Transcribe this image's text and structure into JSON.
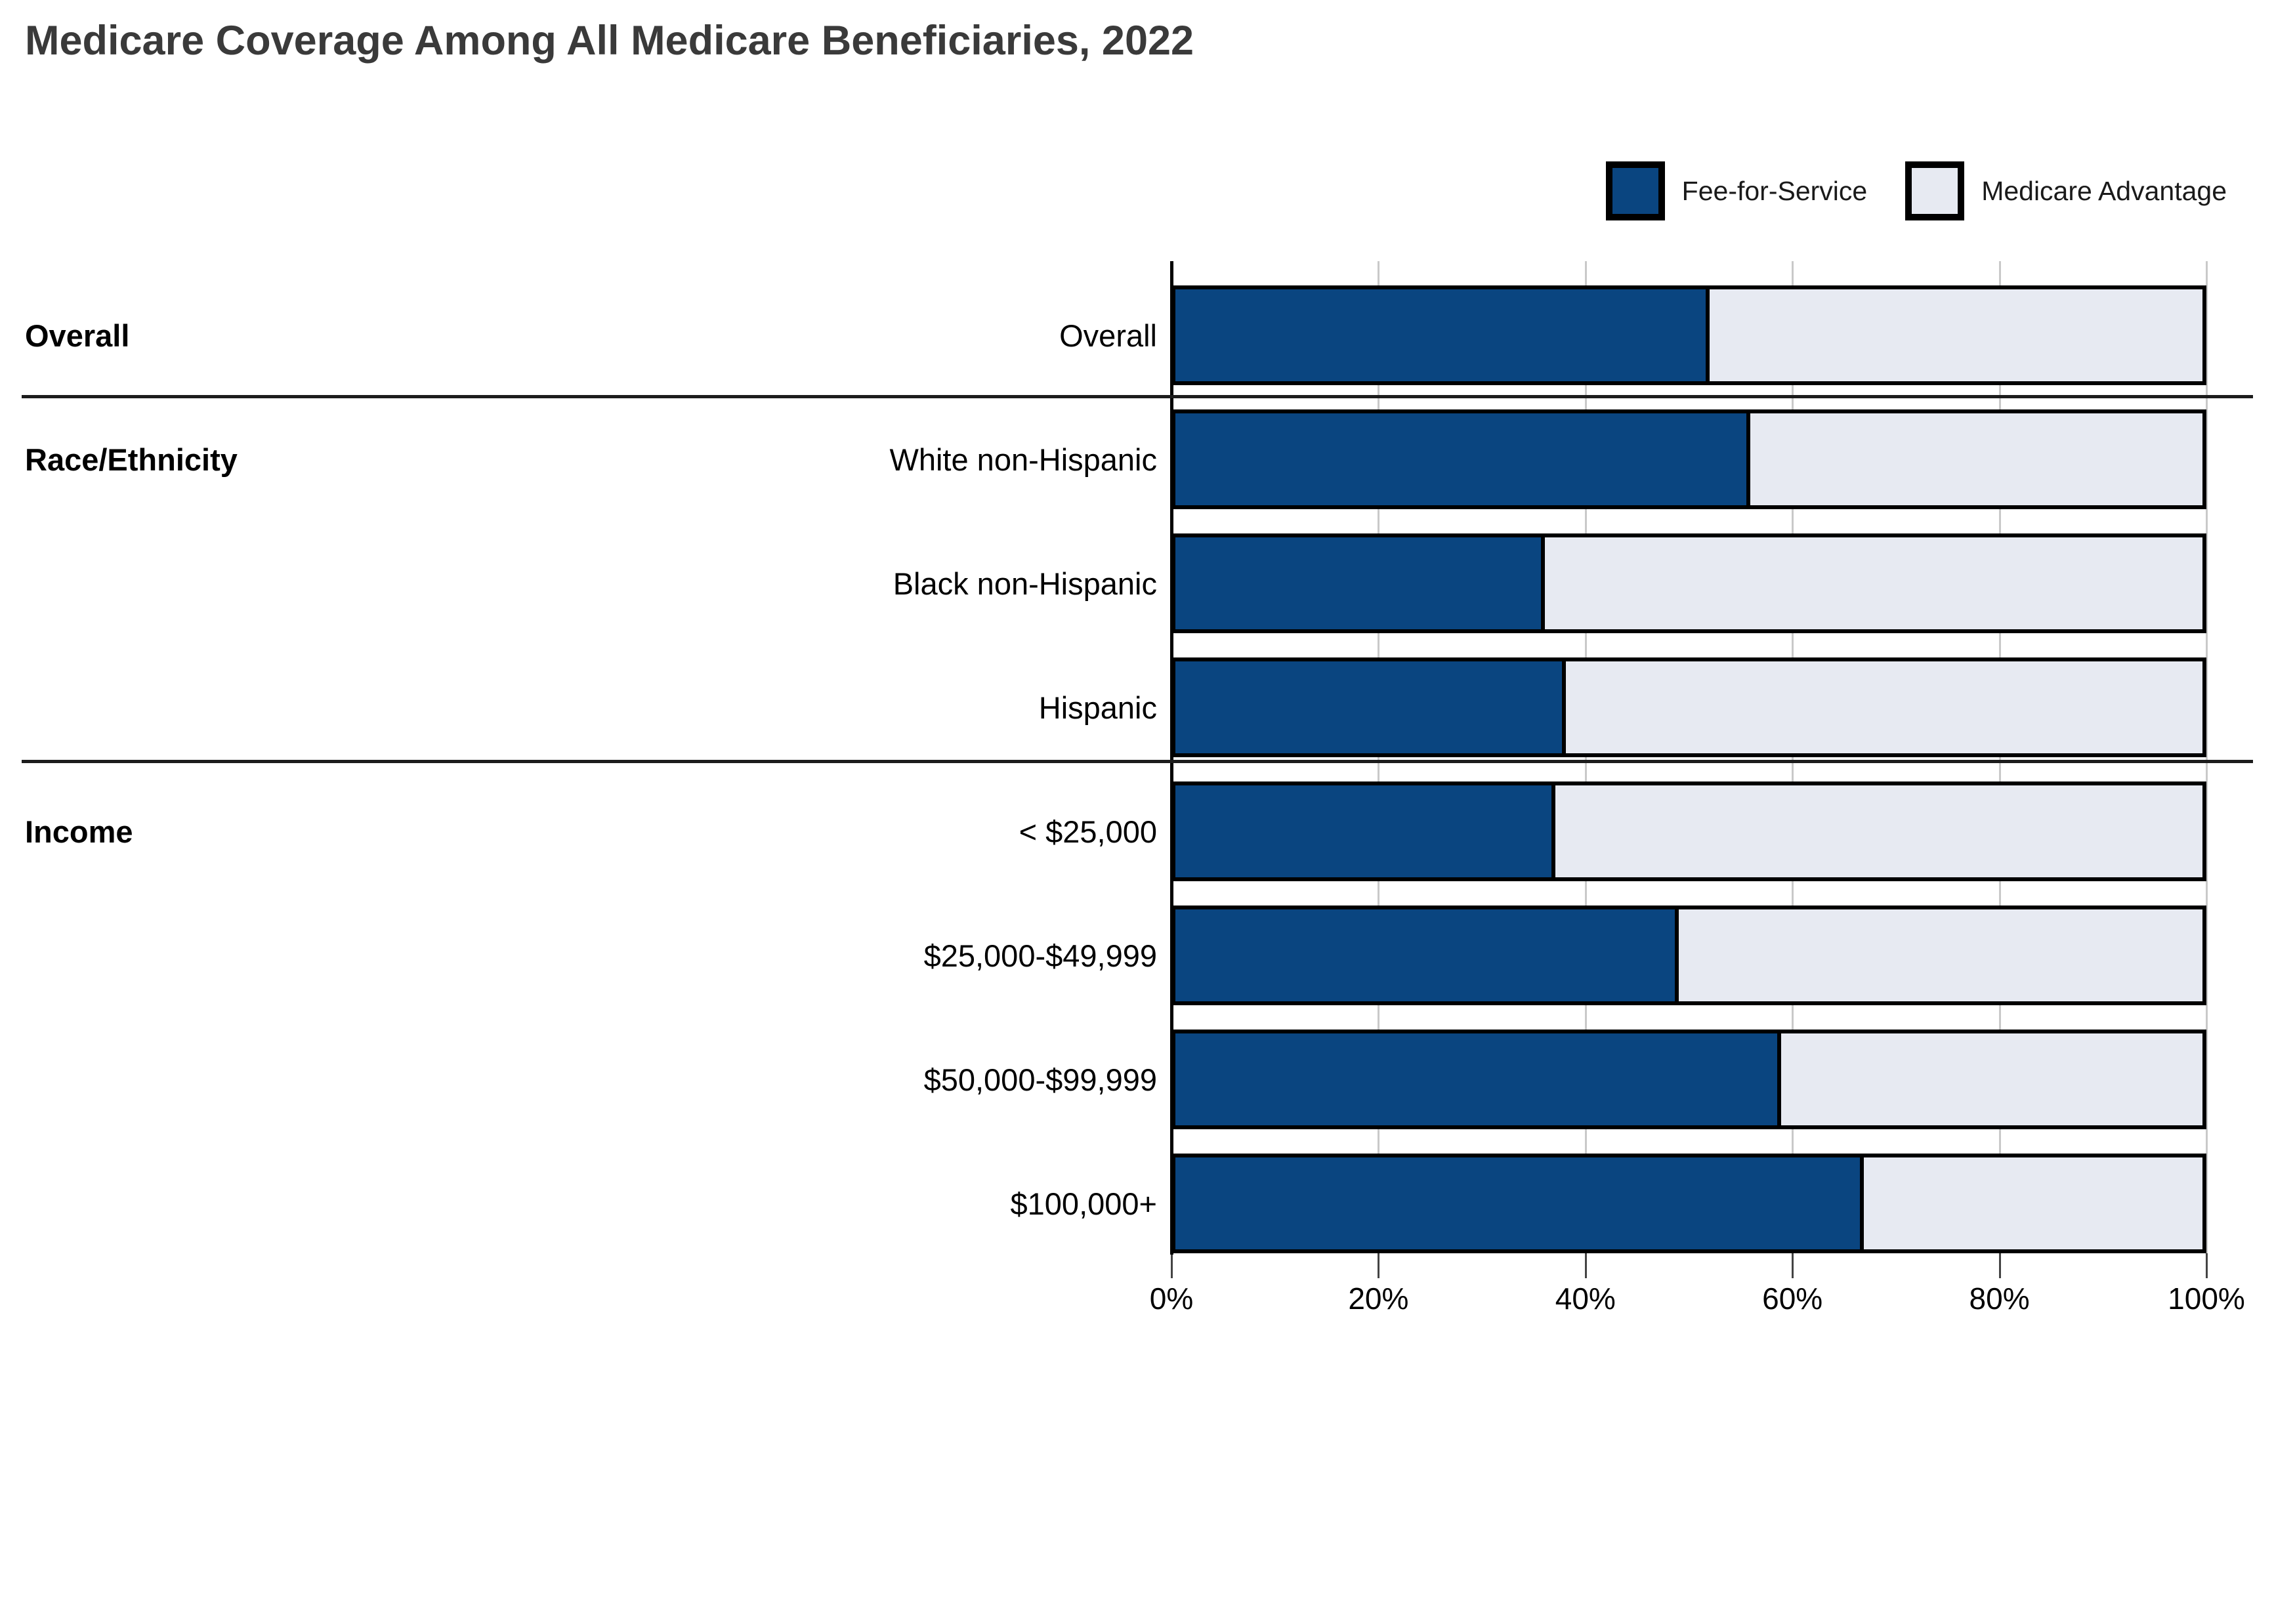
{
  "title": "Medicare Coverage Among All Medicare Beneficiaries, 2022",
  "legend": {
    "items": [
      {
        "label": "Fee-for-Service",
        "key": "ffs"
      },
      {
        "label": "Medicare Advantage",
        "key": "ma"
      }
    ]
  },
  "colors": {
    "ffs": "#0A4580",
    "ma": "#E7EAF2",
    "bar_border": "#000000",
    "gridline": "#C9C9C9",
    "axis": "#000000",
    "divider": "#1C1C1C",
    "title_text": "#3A3A3A",
    "label_text": "#111111"
  },
  "axis": {
    "tick_labels": [
      "0%",
      "20%",
      "40%",
      "60%",
      "80%",
      "100%"
    ],
    "tick_values": [
      0,
      20,
      40,
      60,
      80,
      100
    ]
  },
  "sections": [
    {
      "label": "Overall",
      "rows": [
        {
          "label": "Overall",
          "ffs": 52,
          "ma": 48
        }
      ]
    },
    {
      "label": "Race/Ethnicity",
      "rows": [
        {
          "label": "White non-Hispanic",
          "ffs": 56,
          "ma": 44
        },
        {
          "label": "Black non-Hispanic",
          "ffs": 36,
          "ma": 64
        },
        {
          "label": "Hispanic",
          "ffs": 38,
          "ma": 62
        }
      ]
    },
    {
      "label": "Income",
      "rows": [
        {
          "label": "< $25,000",
          "ffs": 37,
          "ma": 63
        },
        {
          "label": "$25,000-$49,999",
          "ffs": 49,
          "ma": 51
        },
        {
          "label": "$50,000-$99,999",
          "ffs": 59,
          "ma": 41
        },
        {
          "label": "$100,000+",
          "ffs": 67,
          "ma": 33
        }
      ]
    }
  ],
  "chart_data": {
    "type": "bar",
    "orientation": "horizontal",
    "stacked": true,
    "stack_total": 100,
    "units": "%",
    "title": "Medicare Coverage Among All Medicare Beneficiaries, 2022",
    "categories": [
      "Overall",
      "White non-Hispanic",
      "Black non-Hispanic",
      "Hispanic",
      "< $25,000",
      "$25,000-$49,999",
      "$50,000-$99,999",
      "$100,000+"
    ],
    "category_groups": [
      {
        "group": "Overall",
        "categories": [
          "Overall"
        ]
      },
      {
        "group": "Race/Ethnicity",
        "categories": [
          "White non-Hispanic",
          "Black non-Hispanic",
          "Hispanic"
        ]
      },
      {
        "group": "Income",
        "categories": [
          "< $25,000",
          "$25,000-$49,999",
          "$50,000-$99,999",
          "$100,000+"
        ]
      }
    ],
    "series": [
      {
        "name": "Fee-for-Service",
        "values": [
          52,
          56,
          36,
          38,
          37,
          49,
          59,
          67
        ],
        "color": "#0A4580"
      },
      {
        "name": "Medicare Advantage",
        "values": [
          48,
          44,
          64,
          62,
          63,
          51,
          41,
          33
        ],
        "color": "#E7EAF2"
      }
    ],
    "xlabel": "",
    "ylabel": "",
    "xlim": [
      0,
      100
    ],
    "x_tick_labels": [
      "0%",
      "20%",
      "40%",
      "60%",
      "80%",
      "100%"
    ],
    "grid": true,
    "legend_position": "top-right"
  }
}
